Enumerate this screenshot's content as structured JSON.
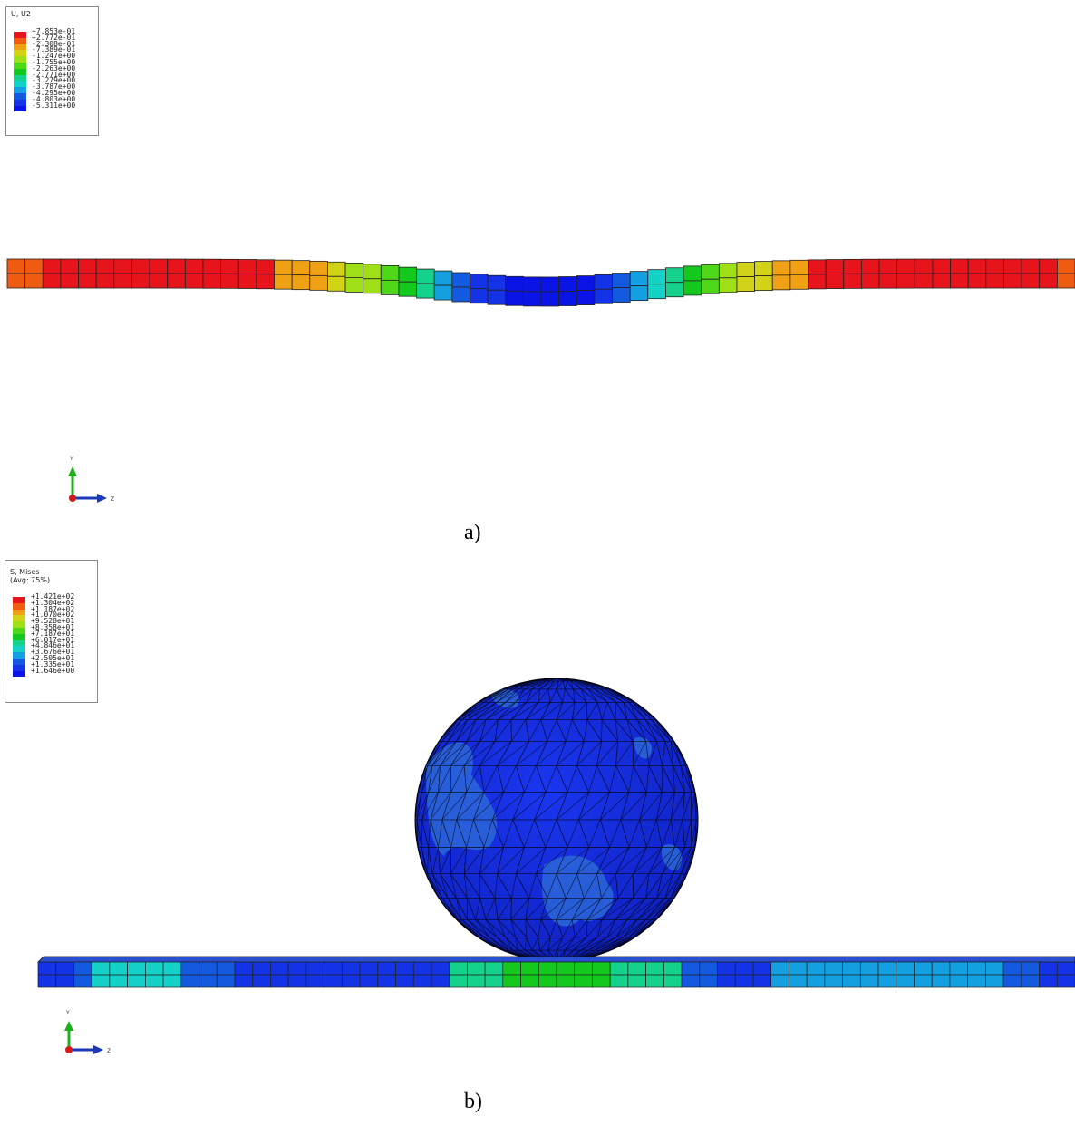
{
  "panel_a": {
    "caption": "a)",
    "legend": {
      "title": "U, U2",
      "labels": [
        "+7.853e-01",
        "+2.772e-01",
        "-2.308e-01",
        "-7.389e-01",
        "-1.247e+00",
        "-1.755e+00",
        "-2.263e+00",
        "-2.771e+00",
        "-3.279e+00",
        "-3.787e+00",
        "-4.295e+00",
        "-4.803e+00",
        "-5.311e+00"
      ],
      "colors": [
        "#e8141c",
        "#f05b12",
        "#f0a014",
        "#d2d216",
        "#9edf18",
        "#4fd81a",
        "#14c81e",
        "#14d28c",
        "#14d2c8",
        "#14a0e0",
        "#145ae0",
        "#1432e6",
        "#0a14e6"
      ]
    },
    "axes": {
      "y": "Y",
      "z": "Z"
    }
  },
  "panel_b": {
    "caption": "b)",
    "legend": {
      "title": "S, Mises\n(Avg: 75%)",
      "labels": [
        "+1.421e+02",
        "+1.304e+02",
        "+1.187e+02",
        "+1.070e+02",
        "+9.528e+01",
        "+8.358e+01",
        "+7.187e+01",
        "+6.017e+01",
        "+4.846e+01",
        "+3.676e+01",
        "+2.505e+01",
        "+1.335e+01",
        "+1.646e+00"
      ],
      "colors": [
        "#e8141c",
        "#f05b12",
        "#f0a014",
        "#d2d216",
        "#9edf18",
        "#4fd81a",
        "#14c81e",
        "#14d28c",
        "#14d2c8",
        "#14a0e0",
        "#145ae0",
        "#1432e6",
        "#0a14e6"
      ]
    },
    "axes": {
      "y": "Y",
      "z": "Z"
    }
  }
}
